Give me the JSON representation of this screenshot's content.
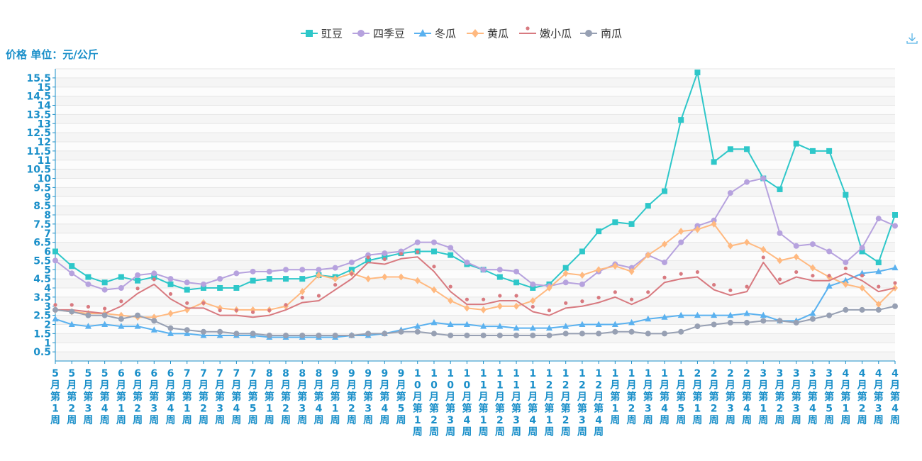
{
  "toolbar": {
    "download_icon": "download-icon"
  },
  "chart_data": {
    "type": "line",
    "ylabel": "价格 单位：元/公斤",
    "yticks": [
      "0.5",
      "1",
      "1.5",
      "2",
      "2.5",
      "3",
      "3.5",
      "4",
      "4.5",
      "5",
      "5.5",
      "6",
      "6.5",
      "7",
      "7.5",
      "8",
      "8.5",
      "9",
      "9.5",
      "10",
      "10.5",
      "11",
      "11.5",
      "12",
      "12.5",
      "13",
      "13.5",
      "14",
      "14.5",
      "15",
      "15.5"
    ],
    "ylim": [
      0,
      16
    ],
    "legend_position": "top-center",
    "grid": true,
    "categories": [
      "5月第1周",
      "5月第2周",
      "5月第3周",
      "5月第4周",
      "6月第1周",
      "6月第2周",
      "6月第3周",
      "6月第4周",
      "7月第1周",
      "7月第2周",
      "7月第3周",
      "7月第4周",
      "7月第5周",
      "8月第1周",
      "8月第2周",
      "8月第3周",
      "8月第4周",
      "9月第1周",
      "9月第2周",
      "9月第3周",
      "9月第4周",
      "9月第5周",
      "10月第1周",
      "10月第2周",
      "10月第3周",
      "10月第4周",
      "11月第1周",
      "11月第2周",
      "11月第3周",
      "11月第4周",
      "12月第1周",
      "12月第2周",
      "12月第3周",
      "12月第4周",
      "1月第1周",
      "1月第2周",
      "1月第3周",
      "1月第4周",
      "1月第5周",
      "2月第1周",
      "2月第2周",
      "2月第3周",
      "2月第4周",
      "3月第1周",
      "3月第2周",
      "3月第3周",
      "3月第4周",
      "3月第5周",
      "4月第1周",
      "4月第2周",
      "4月第3周",
      "4月第4周"
    ],
    "series": [
      {
        "name": "豇豆",
        "color": "#2ec7c9",
        "symbol": "square",
        "values": [
          6.0,
          5.2,
          4.6,
          4.3,
          4.6,
          4.4,
          4.6,
          4.2,
          3.9,
          4.0,
          4.0,
          4.0,
          4.4,
          4.5,
          4.5,
          4.5,
          4.7,
          4.6,
          5.0,
          5.5,
          5.7,
          5.9,
          6.0,
          6.0,
          5.8,
          5.3,
          5.0,
          4.6,
          4.3,
          4.0,
          4.2,
          5.1,
          6.0,
          7.1,
          7.6,
          7.5,
          8.5,
          9.3,
          13.2,
          15.8,
          10.9,
          11.6,
          11.6,
          10.0,
          9.4,
          11.9,
          11.5,
          11.5,
          9.1,
          6.0,
          5.4,
          8.0
        ]
      },
      {
        "name": "四季豆",
        "color": "#b6a2de",
        "symbol": "circle",
        "values": [
          5.5,
          4.8,
          4.2,
          3.9,
          4.0,
          4.7,
          4.8,
          4.5,
          4.3,
          4.2,
          4.5,
          4.8,
          4.9,
          4.9,
          5.0,
          5.0,
          5.0,
          5.1,
          5.4,
          5.8,
          5.9,
          6.0,
          6.5,
          6.5,
          6.2,
          5.4,
          5.0,
          5.0,
          4.9,
          4.2,
          4.1,
          4.3,
          4.2,
          4.9,
          5.3,
          5.1,
          5.8,
          5.4,
          6.5,
          7.4,
          7.7,
          9.2,
          9.8,
          10.0,
          7.0,
          6.3,
          6.4,
          6.0,
          5.4,
          6.2,
          7.8,
          7.4
        ]
      },
      {
        "name": "冬瓜",
        "color": "#5ab1ef",
        "symbol": "triangle",
        "values": [
          2.3,
          2.0,
          1.9,
          2.0,
          1.9,
          1.9,
          1.7,
          1.5,
          1.5,
          1.4,
          1.4,
          1.4,
          1.4,
          1.3,
          1.3,
          1.3,
          1.3,
          1.3,
          1.4,
          1.4,
          1.5,
          1.7,
          1.9,
          2.1,
          2.0,
          2.0,
          1.9,
          1.9,
          1.8,
          1.8,
          1.8,
          1.9,
          2.0,
          2.0,
          2.0,
          2.1,
          2.3,
          2.4,
          2.5,
          2.5,
          2.5,
          2.5,
          2.6,
          2.5,
          2.2,
          2.2,
          2.6,
          4.1,
          4.4,
          4.8,
          4.9,
          5.1
        ]
      },
      {
        "name": "黄瓜",
        "color": "#ffb980",
        "symbol": "diamond",
        "values": [
          2.8,
          2.7,
          2.6,
          2.6,
          2.5,
          2.4,
          2.4,
          2.6,
          2.8,
          3.2,
          2.9,
          2.8,
          2.8,
          2.8,
          3.0,
          3.8,
          4.7,
          4.5,
          4.8,
          4.5,
          4.6,
          4.6,
          4.4,
          3.9,
          3.3,
          2.9,
          2.8,
          3.0,
          3.0,
          3.3,
          4.0,
          4.8,
          4.7,
          5.0,
          5.2,
          4.9,
          5.8,
          6.4,
          7.1,
          7.2,
          7.5,
          6.3,
          6.5,
          6.1,
          5.5,
          5.7,
          5.1,
          4.6,
          4.2,
          4.0,
          3.1,
          4.0
        ]
      },
      {
        "name": "嫩小瓜",
        "color": "#d87a80",
        "symbol": "circle",
        "values": [
          2.8,
          2.8,
          2.7,
          2.6,
          3.0,
          3.7,
          4.2,
          3.4,
          2.9,
          2.9,
          2.5,
          2.5,
          2.4,
          2.5,
          2.8,
          3.2,
          3.3,
          3.9,
          4.5,
          5.4,
          5.3,
          5.6,
          5.7,
          4.9,
          3.8,
          3.1,
          3.1,
          3.3,
          3.3,
          2.7,
          2.5,
          2.9,
          3.0,
          3.2,
          3.5,
          3.1,
          3.5,
          4.3,
          4.5,
          4.6,
          3.9,
          3.6,
          3.8,
          5.4,
          4.2,
          4.6,
          4.4,
          4.4,
          4.8,
          4.4,
          3.8,
          4.0
        ]
      },
      {
        "name": "南瓜",
        "color": "#97a0b3",
        "symbol": "circle",
        "values": [
          2.8,
          2.7,
          2.5,
          2.5,
          2.3,
          2.5,
          2.2,
          1.8,
          1.7,
          1.6,
          1.6,
          1.5,
          1.5,
          1.4,
          1.4,
          1.4,
          1.4,
          1.4,
          1.4,
          1.5,
          1.5,
          1.6,
          1.6,
          1.5,
          1.4,
          1.4,
          1.4,
          1.4,
          1.4,
          1.4,
          1.4,
          1.5,
          1.5,
          1.5,
          1.6,
          1.6,
          1.5,
          1.5,
          1.6,
          1.9,
          2.0,
          2.1,
          2.1,
          2.2,
          2.2,
          2.1,
          2.3,
          2.5,
          2.8,
          2.8,
          2.8,
          3.0
        ]
      }
    ]
  }
}
